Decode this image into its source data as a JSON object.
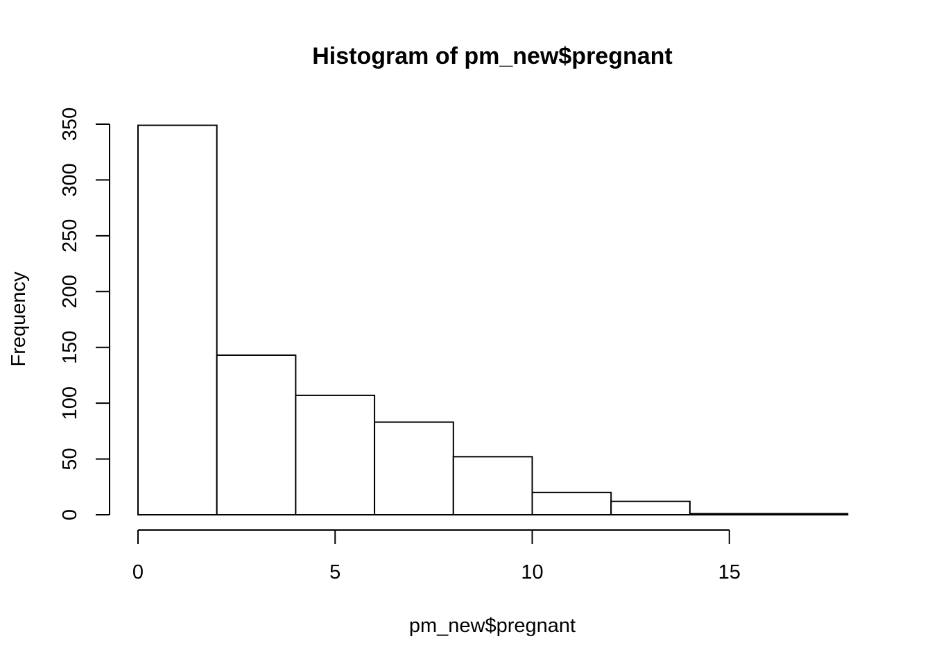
{
  "chart_data": {
    "type": "bar",
    "title": "Histogram of pm_new$pregnant",
    "xlabel": "pm_new$pregnant",
    "ylabel": "Frequency",
    "bin_edges": [
      0,
      2,
      4,
      6,
      8,
      10,
      12,
      14,
      16,
      18
    ],
    "values": [
      349,
      143,
      107,
      83,
      52,
      20,
      12,
      1,
      1
    ],
    "xlim": [
      0,
      18
    ],
    "ylim": [
      0,
      350
    ],
    "x_ticks": [
      "0",
      "5",
      "10",
      "15"
    ],
    "y_ticks": [
      "0",
      "50",
      "100",
      "150",
      "200",
      "250",
      "300",
      "350"
    ],
    "colors": {
      "bar_fill": "#ffffff",
      "bar_stroke": "#000000"
    },
    "grid": false,
    "legend": "none"
  }
}
